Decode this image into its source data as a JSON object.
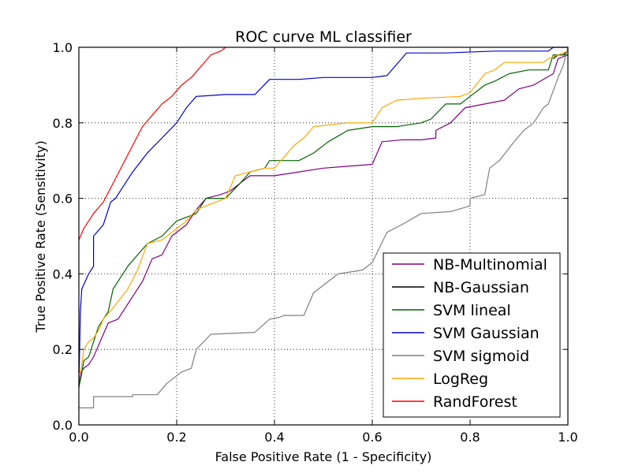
{
  "chart_data": {
    "type": "line",
    "title": "ROC curve ML classifier",
    "xlabel": "False Positive Rate (1 - Specificity)",
    "ylabel": "True Positive Rate (Sensitivity)",
    "xlim": [
      0,
      1
    ],
    "ylim": [
      0,
      1
    ],
    "xticks": [
      "0.0",
      "0.2",
      "0.4",
      "0.6",
      "0.8",
      "1.0"
    ],
    "yticks": [
      "0.0",
      "0.2",
      "0.4",
      "0.6",
      "0.8",
      "1.0"
    ],
    "grid": true,
    "legend_position": "bottom-right",
    "series": [
      {
        "name": "NB-Multinomial",
        "color": "#800080",
        "points": [
          [
            0,
            0.1
          ],
          [
            0.005,
            0.14
          ],
          [
            0.01,
            0.15
          ],
          [
            0.02,
            0.16
          ],
          [
            0.03,
            0.18
          ],
          [
            0.05,
            0.24
          ],
          [
            0.06,
            0.27
          ],
          [
            0.08,
            0.28
          ],
          [
            0.1,
            0.32
          ],
          [
            0.13,
            0.38
          ],
          [
            0.15,
            0.44
          ],
          [
            0.17,
            0.45
          ],
          [
            0.19,
            0.5
          ],
          [
            0.21,
            0.52
          ],
          [
            0.22,
            0.53
          ],
          [
            0.24,
            0.57
          ],
          [
            0.26,
            0.6
          ],
          [
            0.29,
            0.61
          ],
          [
            0.31,
            0.62
          ],
          [
            0.33,
            0.64
          ],
          [
            0.35,
            0.66
          ],
          [
            0.4,
            0.66
          ],
          [
            0.45,
            0.67
          ],
          [
            0.5,
            0.68
          ],
          [
            0.55,
            0.685
          ],
          [
            0.6,
            0.69
          ],
          [
            0.62,
            0.75
          ],
          [
            0.66,
            0.755
          ],
          [
            0.7,
            0.755
          ],
          [
            0.73,
            0.76
          ],
          [
            0.73,
            0.78
          ],
          [
            0.76,
            0.8
          ],
          [
            0.79,
            0.84
          ],
          [
            0.83,
            0.85
          ],
          [
            0.87,
            0.86
          ],
          [
            0.9,
            0.89
          ],
          [
            0.93,
            0.9
          ],
          [
            0.97,
            0.93
          ],
          [
            0.98,
            0.97
          ],
          [
            1,
            0.98
          ]
        ]
      },
      {
        "name": "NB-Gaussian",
        "color": "#000000",
        "points": [
          [
            0.97,
            0.97
          ],
          [
            0.98,
            0.98
          ],
          [
            0.99,
            0.98
          ],
          [
            1,
            0.99
          ]
        ]
      },
      {
        "name": "SVM lineal",
        "color": "#006400",
        "points": [
          [
            0,
            0.1
          ],
          [
            0.005,
            0.13
          ],
          [
            0.01,
            0.17
          ],
          [
            0.02,
            0.18
          ],
          [
            0.03,
            0.22
          ],
          [
            0.04,
            0.26
          ],
          [
            0.06,
            0.3
          ],
          [
            0.07,
            0.36
          ],
          [
            0.1,
            0.42
          ],
          [
            0.12,
            0.45
          ],
          [
            0.14,
            0.48
          ],
          [
            0.17,
            0.5
          ],
          [
            0.2,
            0.54
          ],
          [
            0.24,
            0.56
          ],
          [
            0.26,
            0.6
          ],
          [
            0.3,
            0.6
          ],
          [
            0.33,
            0.64
          ],
          [
            0.35,
            0.67
          ],
          [
            0.38,
            0.68
          ],
          [
            0.39,
            0.7
          ],
          [
            0.45,
            0.7
          ],
          [
            0.48,
            0.72
          ],
          [
            0.51,
            0.75
          ],
          [
            0.55,
            0.78
          ],
          [
            0.6,
            0.79
          ],
          [
            0.65,
            0.79
          ],
          [
            0.7,
            0.8
          ],
          [
            0.72,
            0.81
          ],
          [
            0.75,
            0.85
          ],
          [
            0.78,
            0.85
          ],
          [
            0.8,
            0.87
          ],
          [
            0.83,
            0.9
          ],
          [
            0.85,
            0.91
          ],
          [
            0.88,
            0.93
          ],
          [
            0.92,
            0.94
          ],
          [
            0.96,
            0.94
          ],
          [
            0.97,
            0.98
          ],
          [
            1,
            0.98
          ]
        ]
      },
      {
        "name": "SVM Gaussian",
        "color": "#0000cc",
        "points": [
          [
            0,
            0.1
          ],
          [
            0.003,
            0.3
          ],
          [
            0.006,
            0.36
          ],
          [
            0.02,
            0.4
          ],
          [
            0.03,
            0.42
          ],
          [
            0.03,
            0.5
          ],
          [
            0.05,
            0.53
          ],
          [
            0.065,
            0.59
          ],
          [
            0.075,
            0.6
          ],
          [
            0.09,
            0.63
          ],
          [
            0.11,
            0.67
          ],
          [
            0.14,
            0.72
          ],
          [
            0.17,
            0.76
          ],
          [
            0.2,
            0.8
          ],
          [
            0.22,
            0.84
          ],
          [
            0.24,
            0.87
          ],
          [
            0.3,
            0.875
          ],
          [
            0.36,
            0.875
          ],
          [
            0.39,
            0.915
          ],
          [
            0.45,
            0.915
          ],
          [
            0.5,
            0.92
          ],
          [
            0.6,
            0.92
          ],
          [
            0.63,
            0.925
          ],
          [
            0.67,
            0.985
          ],
          [
            0.75,
            0.985
          ],
          [
            0.85,
            0.99
          ],
          [
            0.96,
            0.99
          ],
          [
            0.97,
            1.0
          ],
          [
            1,
            1.0
          ]
        ]
      },
      {
        "name": "SVM sigmoid",
        "color": "#808080",
        "points": [
          [
            0,
            0.045
          ],
          [
            0.03,
            0.045
          ],
          [
            0.03,
            0.075
          ],
          [
            0.11,
            0.075
          ],
          [
            0.11,
            0.08
          ],
          [
            0.16,
            0.08
          ],
          [
            0.18,
            0.11
          ],
          [
            0.21,
            0.14
          ],
          [
            0.23,
            0.15
          ],
          [
            0.24,
            0.2
          ],
          [
            0.27,
            0.24
          ],
          [
            0.36,
            0.245
          ],
          [
            0.39,
            0.28
          ],
          [
            0.41,
            0.285
          ],
          [
            0.42,
            0.29
          ],
          [
            0.46,
            0.29
          ],
          [
            0.48,
            0.35
          ],
          [
            0.53,
            0.4
          ],
          [
            0.58,
            0.41
          ],
          [
            0.6,
            0.43
          ],
          [
            0.63,
            0.51
          ],
          [
            0.66,
            0.53
          ],
          [
            0.7,
            0.56
          ],
          [
            0.76,
            0.565
          ],
          [
            0.8,
            0.58
          ],
          [
            0.8,
            0.6
          ],
          [
            0.83,
            0.61
          ],
          [
            0.84,
            0.68
          ],
          [
            0.86,
            0.7
          ],
          [
            0.89,
            0.75
          ],
          [
            0.91,
            0.78
          ],
          [
            0.93,
            0.8
          ],
          [
            0.94,
            0.82
          ],
          [
            0.95,
            0.84
          ],
          [
            0.96,
            0.85
          ],
          [
            0.98,
            0.92
          ],
          [
            0.99,
            0.95
          ],
          [
            1,
            1.0
          ]
        ]
      },
      {
        "name": "LogReg",
        "color": "#ffa500",
        "points": [
          [
            0,
            0.13
          ],
          [
            0.005,
            0.15
          ],
          [
            0.01,
            0.2
          ],
          [
            0.02,
            0.22
          ],
          [
            0.03,
            0.23
          ],
          [
            0.04,
            0.25
          ],
          [
            0.05,
            0.28
          ],
          [
            0.07,
            0.31
          ],
          [
            0.1,
            0.36
          ],
          [
            0.12,
            0.41
          ],
          [
            0.14,
            0.48
          ],
          [
            0.17,
            0.49
          ],
          [
            0.2,
            0.52
          ],
          [
            0.22,
            0.54
          ],
          [
            0.24,
            0.57
          ],
          [
            0.26,
            0.58
          ],
          [
            0.3,
            0.6
          ],
          [
            0.32,
            0.66
          ],
          [
            0.35,
            0.67
          ],
          [
            0.38,
            0.68
          ],
          [
            0.4,
            0.68
          ],
          [
            0.44,
            0.74
          ],
          [
            0.46,
            0.76
          ],
          [
            0.48,
            0.79
          ],
          [
            0.55,
            0.8
          ],
          [
            0.6,
            0.8
          ],
          [
            0.62,
            0.84
          ],
          [
            0.65,
            0.86
          ],
          [
            0.7,
            0.865
          ],
          [
            0.78,
            0.87
          ],
          [
            0.8,
            0.88
          ],
          [
            0.83,
            0.93
          ],
          [
            0.85,
            0.94
          ],
          [
            0.87,
            0.96
          ],
          [
            0.95,
            0.96
          ],
          [
            0.96,
            0.97
          ],
          [
            1,
            0.99
          ]
        ]
      },
      {
        "name": "RandForest",
        "color": "#ff0000",
        "points": [
          [
            0,
            0.49
          ],
          [
            0.01,
            0.52
          ],
          [
            0.03,
            0.56
          ],
          [
            0.05,
            0.59
          ],
          [
            0.07,
            0.64
          ],
          [
            0.09,
            0.69
          ],
          [
            0.11,
            0.74
          ],
          [
            0.13,
            0.79
          ],
          [
            0.15,
            0.82
          ],
          [
            0.17,
            0.85
          ],
          [
            0.19,
            0.87
          ],
          [
            0.21,
            0.9
          ],
          [
            0.23,
            0.92
          ],
          [
            0.25,
            0.95
          ],
          [
            0.27,
            0.98
          ],
          [
            0.29,
            0.99
          ],
          [
            0.3,
            1.0
          ]
        ]
      }
    ]
  }
}
